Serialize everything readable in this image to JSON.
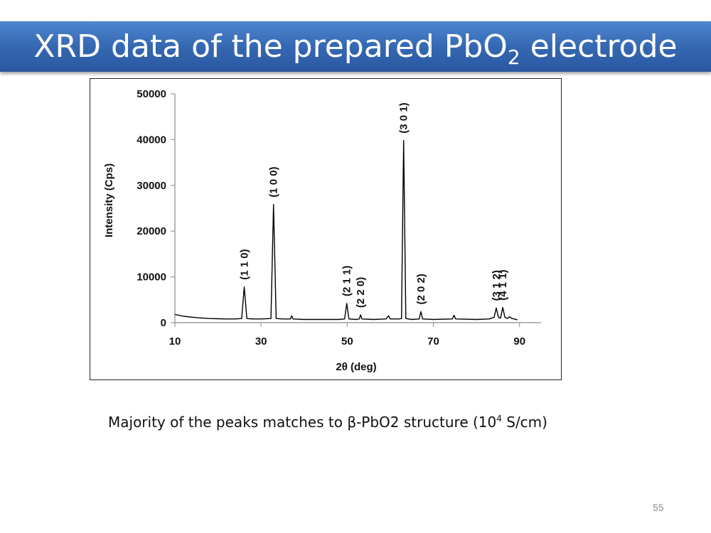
{
  "slide": {
    "title_main": "XRD data of the prepared PbO",
    "title_sub": "2",
    "title_end": " electrode",
    "caption_main": "Majority of the peaks matches  to β-PbO2 structure (10",
    "caption_sup": "4",
    "caption_end": " S/cm)",
    "page_number": "55"
  },
  "chart_data": {
    "type": "line",
    "xlabel": "2θ (deg)",
    "ylabel": "Intensity (Cps)",
    "xlim": [
      10,
      95
    ],
    "ylim": [
      0,
      50000
    ],
    "x_ticks": [
      10,
      30,
      50,
      70,
      90
    ],
    "y_ticks": [
      0,
      10000,
      20000,
      30000,
      40000,
      50000
    ],
    "x_tick_labels": [
      "10",
      "30",
      "50",
      "70",
      "90"
    ],
    "y_tick_labels": [
      "0",
      "10000",
      "20000",
      "30000",
      "40000",
      "50000"
    ],
    "grid": false,
    "line_color": "#000000",
    "series": [
      {
        "x": [
          10,
          12,
          15,
          18,
          20,
          22,
          24,
          25.5,
          26.1,
          26.7,
          28,
          30,
          32.3,
          32.9,
          33.5,
          35,
          36.8,
          37.1,
          37.4,
          40,
          45,
          48,
          49.4,
          49.9,
          50.4,
          52,
          52.8,
          53.1,
          53.4,
          56,
          59,
          59.6,
          60,
          62,
          62.6,
          63.1,
          63.6,
          65,
          66.7,
          67.1,
          67.5,
          70,
          74.4,
          74.8,
          75.2,
          80,
          83,
          84.1,
          84.6,
          85.1,
          85.6,
          86.1,
          86.6,
          87.2,
          87.7,
          88.2,
          88.8,
          89.5
        ],
        "y": [
          1800,
          1400,
          1100,
          900,
          850,
          800,
          800,
          900,
          7800,
          900,
          800,
          800,
          900,
          25800,
          900,
          800,
          800,
          1500,
          800,
          700,
          700,
          700,
          800,
          4200,
          800,
          700,
          800,
          1700,
          800,
          700,
          800,
          1500,
          800,
          800,
          900,
          39800,
          900,
          700,
          800,
          2400,
          800,
          700,
          800,
          1600,
          800,
          700,
          800,
          1200,
          3200,
          1200,
          1000,
          3300,
          1200,
          900,
          1300,
          900,
          800,
          600
        ]
      }
    ],
    "annotations": [
      {
        "label": "(1 1 0)",
        "x": 26.1,
        "y": 7800
      },
      {
        "label": "(1 0 0)",
        "x": 32.9,
        "y": 25800
      },
      {
        "label": "(2 1 1)",
        "x": 49.9,
        "y": 4200
      },
      {
        "label": "(2 2 0)",
        "x": 53.1,
        "y": 1700
      },
      {
        "label": "(3 0 1)",
        "x": 63.1,
        "y": 39800
      },
      {
        "label": "(2 0 2)",
        "x": 67.1,
        "y": 2400
      },
      {
        "label": "(3 1 2)",
        "x": 84.6,
        "y": 3200
      },
      {
        "label": "(4 1 1)",
        "x": 86.1,
        "y": 3300
      }
    ]
  }
}
